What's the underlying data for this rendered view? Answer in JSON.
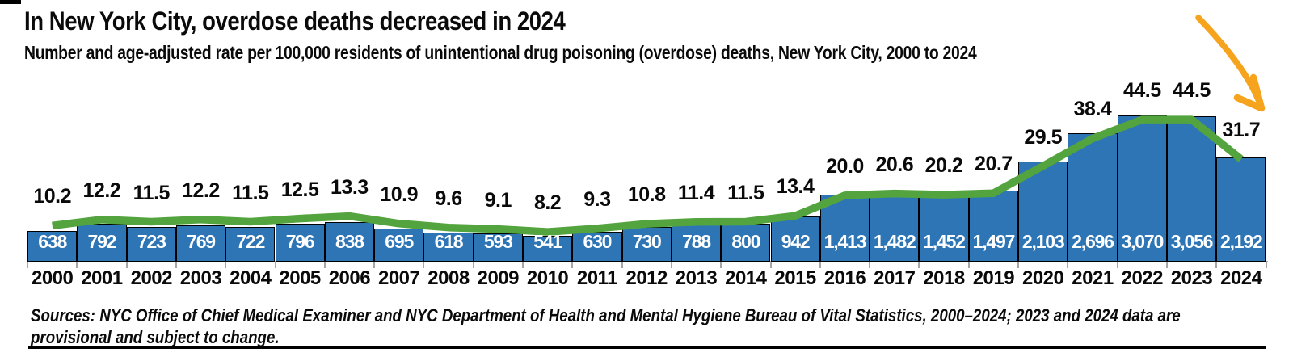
{
  "header": {
    "title": "In New York City, overdose deaths decreased in 2024",
    "subtitle": "Number and age-adjusted rate per 100,000 residents of unintentional drug poisoning (overdose) deaths, New York City, 2000 to 2024"
  },
  "footer": {
    "sources_line1": "Sources: NYC Office of Chief Medical Examiner and NYC Department of Health and Mental Hygiene Bureau of Vital Statistics, 2000–2024; 2023 and 2024 data are",
    "sources_line2": "provisional and subject to change."
  },
  "chart_data": {
    "type": "bar",
    "subtype": "bar-with-line-overlay",
    "title": "In New York City, overdose deaths decreased in 2024",
    "subtitle": "Number and age-adjusted rate per 100,000 residents of unintentional drug poisoning (overdose) deaths, New York City, 2000 to 2024",
    "categories": [
      "2000",
      "2001",
      "2002",
      "2003",
      "2004",
      "2005",
      "2006",
      "2007",
      "2008",
      "2009",
      "2010",
      "2011",
      "2012",
      "2013",
      "2014",
      "2015",
      "2016",
      "2017",
      "2018",
      "2019",
      "2020",
      "2021",
      "2022",
      "2023",
      "2024"
    ],
    "series": [
      {
        "name": "Overdose deaths (number)",
        "type": "bar",
        "values": [
          638,
          792,
          723,
          769,
          722,
          796,
          838,
          695,
          618,
          593,
          541,
          630,
          730,
          788,
          800,
          942,
          1413,
          1482,
          1452,
          1497,
          2103,
          2696,
          3070,
          3056,
          2192
        ],
        "labels": [
          "638",
          "792",
          "723",
          "769",
          "722",
          "796",
          "838",
          "695",
          "618",
          "593",
          "541",
          "630",
          "730",
          "788",
          "800",
          "942",
          "1,413",
          "1,482",
          "1,452",
          "1,497",
          "2,103",
          "2,696",
          "3,070",
          "3,056",
          "2,192"
        ]
      },
      {
        "name": "Age-adjusted rate per 100,000 residents",
        "type": "line",
        "values": [
          10.2,
          12.2,
          11.5,
          12.2,
          11.5,
          12.5,
          13.3,
          10.9,
          9.6,
          9.1,
          8.2,
          9.3,
          10.8,
          11.4,
          11.5,
          13.4,
          20.0,
          20.6,
          20.2,
          20.7,
          29.5,
          38.4,
          44.5,
          44.5,
          31.7
        ],
        "labels": [
          "10.2",
          "12.2",
          "11.5",
          "12.2",
          "11.5",
          "12.5",
          "13.3",
          "10.9",
          "9.6",
          "9.1",
          "8.2",
          "9.3",
          "10.8",
          "11.4",
          "11.5",
          "13.4",
          "20.0",
          "20.6",
          "20.2",
          "20.7",
          "29.5",
          "38.4",
          "44.5",
          "44.5",
          "31.7"
        ]
      }
    ],
    "ylim_bars": [
      0,
      3400
    ],
    "ylim_rate": [
      0,
      50
    ],
    "grid": false,
    "legend_position": "none",
    "colors": {
      "bar_fill": "#2E75B6",
      "bar_border": "#000000",
      "bar_label": "#FFFFFF",
      "line": "#53A43E",
      "rate_label": "#0A0A0A",
      "axis": "#A6A6A6",
      "arrow": "#F6A41D",
      "text": "#0A0A0A"
    },
    "annotation": {
      "shape": "curved-arrow",
      "color": "#F6A41D",
      "points_to": "2024"
    }
  }
}
